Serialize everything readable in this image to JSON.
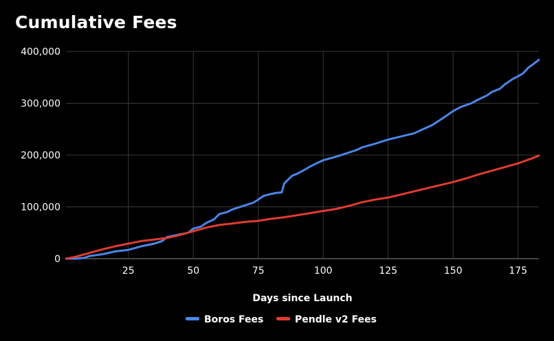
{
  "chart_data": {
    "type": "line",
    "title": "Cumulative Fees",
    "xlabel": "Days since Launch",
    "ylabel": "",
    "xlim": [
      1,
      183
    ],
    "ylim": [
      0,
      400000
    ],
    "x_ticks": [
      25,
      50,
      75,
      100,
      125,
      150,
      175
    ],
    "x_tick_labels": [
      "25",
      "50",
      "75",
      "100",
      "125",
      "150",
      "175"
    ],
    "y_ticks": [
      0,
      100000,
      200000,
      300000,
      400000
    ],
    "y_tick_labels": [
      "0",
      "100,000",
      "200,000",
      "300,000",
      "400,000"
    ],
    "grid": true,
    "legend_position": "bottom",
    "series": [
      {
        "name": "Boros Fees",
        "color": "#4a86e8",
        "points": [
          [
            1,
            0
          ],
          [
            5,
            0
          ],
          [
            8,
            1500
          ],
          [
            10,
            5000
          ],
          [
            15,
            8500
          ],
          [
            20,
            14000
          ],
          [
            25,
            17000
          ],
          [
            28,
            21000
          ],
          [
            30,
            24000
          ],
          [
            35,
            29000
          ],
          [
            38,
            34000
          ],
          [
            40,
            42000
          ],
          [
            45,
            47000
          ],
          [
            48,
            50000
          ],
          [
            50,
            58000
          ],
          [
            53,
            62000
          ],
          [
            55,
            69000
          ],
          [
            58,
            76000
          ],
          [
            60,
            86000
          ],
          [
            63,
            90000
          ],
          [
            65,
            95000
          ],
          [
            70,
            103000
          ],
          [
            73,
            108000
          ],
          [
            75,
            114000
          ],
          [
            77,
            121000
          ],
          [
            80,
            125000
          ],
          [
            82,
            127000
          ],
          [
            84,
            128000
          ],
          [
            85,
            145000
          ],
          [
            88,
            160000
          ],
          [
            90,
            164000
          ],
          [
            93,
            172000
          ],
          [
            95,
            178000
          ],
          [
            97,
            183000
          ],
          [
            100,
            190000
          ],
          [
            105,
            197000
          ],
          [
            110,
            205000
          ],
          [
            113,
            210000
          ],
          [
            115,
            215000
          ],
          [
            120,
            222000
          ],
          [
            125,
            230000
          ],
          [
            130,
            236000
          ],
          [
            135,
            242000
          ],
          [
            138,
            249000
          ],
          [
            142,
            258000
          ],
          [
            145,
            268000
          ],
          [
            148,
            278000
          ],
          [
            150,
            285000
          ],
          [
            153,
            293000
          ],
          [
            157,
            300000
          ],
          [
            160,
            308000
          ],
          [
            163,
            315000
          ],
          [
            165,
            322000
          ],
          [
            168,
            328000
          ],
          [
            170,
            337000
          ],
          [
            173,
            347000
          ],
          [
            175,
            352000
          ],
          [
            177,
            358000
          ],
          [
            179,
            369000
          ],
          [
            181,
            376000
          ],
          [
            183,
            384000
          ]
        ]
      },
      {
        "name": "Pendle v2 Fees",
        "color": "#e03c31",
        "points": [
          [
            1,
            0
          ],
          [
            5,
            4000
          ],
          [
            10,
            11000
          ],
          [
            15,
            18000
          ],
          [
            20,
            24000
          ],
          [
            25,
            29000
          ],
          [
            30,
            34000
          ],
          [
            35,
            37000
          ],
          [
            40,
            40000
          ],
          [
            45,
            46000
          ],
          [
            50,
            53000
          ],
          [
            55,
            60000
          ],
          [
            60,
            65000
          ],
          [
            65,
            68000
          ],
          [
            70,
            71000
          ],
          [
            75,
            73000
          ],
          [
            80,
            77000
          ],
          [
            85,
            80000
          ],
          [
            90,
            84000
          ],
          [
            95,
            88000
          ],
          [
            100,
            92000
          ],
          [
            105,
            96000
          ],
          [
            110,
            102000
          ],
          [
            115,
            109000
          ],
          [
            120,
            114000
          ],
          [
            125,
            118000
          ],
          [
            130,
            124000
          ],
          [
            135,
            130000
          ],
          [
            140,
            136000
          ],
          [
            145,
            142000
          ],
          [
            150,
            148000
          ],
          [
            155,
            155000
          ],
          [
            160,
            163000
          ],
          [
            165,
            170000
          ],
          [
            170,
            177000
          ],
          [
            175,
            184000
          ],
          [
            180,
            193000
          ],
          [
            183,
            199000
          ]
        ]
      }
    ]
  }
}
